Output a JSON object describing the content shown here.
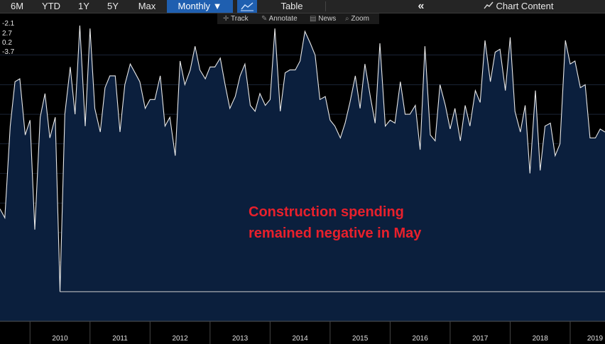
{
  "toolbar": {
    "ranges": [
      "6M",
      "YTD",
      "1Y",
      "5Y",
      "Max"
    ],
    "frequency": "Monthly ▼",
    "table_label": "Table",
    "chart_content_label": "Chart Content"
  },
  "subbar": {
    "track": "Track",
    "annotate": "Annotate",
    "news": "News",
    "zoom": "Zoom"
  },
  "y_labels": [
    "-2.1",
    "2.7",
    "0.2",
    "-3.7"
  ],
  "annotation": "Construction spending\nremained negative in May",
  "colors": {
    "line": "#e8e8e8",
    "fill": "#0b1f3d",
    "annotation": "#e8202c",
    "active_button": "#1f5fb0"
  },
  "chart_data": {
    "type": "area",
    "title": "",
    "xlabel": "",
    "ylabel": "",
    "x_ticks": [
      "2010",
      "2011",
      "2012",
      "2013",
      "2014",
      "2015",
      "2016",
      "2017",
      "2018",
      "2019"
    ],
    "x_range": [
      2009.5,
      2019.58
    ],
    "ylim": [
      -6,
      4
    ],
    "grid": true,
    "series": [
      {
        "values": [
          [
            2009.5,
            -2.2
          ],
          [
            2009.58,
            -2.5
          ],
          [
            2009.67,
            0.6
          ],
          [
            2009.75,
            2.1
          ],
          [
            2009.83,
            2.2
          ],
          [
            2009.92,
            0.3
          ],
          [
            2010.0,
            0.8
          ],
          [
            2010.08,
            -2.9
          ],
          [
            2010.17,
            0.9
          ],
          [
            2010.25,
            1.7
          ],
          [
            2010.33,
            0.2
          ],
          [
            2010.42,
            0.9
          ],
          [
            2010.5,
            -5.0
          ],
          [
            2010.58,
            1.0
          ],
          [
            2010.67,
            2.6
          ],
          [
            2010.75,
            1.0
          ],
          [
            2010.83,
            4.0
          ],
          [
            2010.92,
            0.6
          ],
          [
            2011.0,
            3.9
          ],
          [
            2011.08,
            1.2
          ],
          [
            2011.17,
            0.4
          ],
          [
            2011.25,
            1.9
          ],
          [
            2011.33,
            2.3
          ],
          [
            2011.42,
            2.3
          ],
          [
            2011.5,
            0.4
          ],
          [
            2011.58,
            2.0
          ],
          [
            2011.67,
            2.7
          ],
          [
            2011.75,
            2.4
          ],
          [
            2011.83,
            2.1
          ],
          [
            2011.92,
            1.2
          ],
          [
            2012.0,
            1.5
          ],
          [
            2012.08,
            1.5
          ],
          [
            2012.17,
            2.3
          ],
          [
            2012.25,
            0.6
          ],
          [
            2012.33,
            0.9
          ],
          [
            2012.42,
            -0.4
          ],
          [
            2012.5,
            2.8
          ],
          [
            2012.58,
            2.0
          ],
          [
            2012.67,
            2.5
          ],
          [
            2012.75,
            3.3
          ],
          [
            2012.83,
            2.5
          ],
          [
            2012.92,
            2.2
          ],
          [
            2013.0,
            2.6
          ],
          [
            2013.08,
            2.6
          ],
          [
            2013.17,
            2.9
          ],
          [
            2013.25,
            2.0
          ],
          [
            2013.33,
            1.2
          ],
          [
            2013.42,
            1.6
          ],
          [
            2013.5,
            2.3
          ],
          [
            2013.58,
            2.7
          ],
          [
            2013.67,
            1.3
          ],
          [
            2013.75,
            1.1
          ],
          [
            2013.83,
            1.7
          ],
          [
            2013.92,
            1.3
          ],
          [
            2014.0,
            1.5
          ],
          [
            2014.08,
            3.9
          ],
          [
            2014.17,
            1.1
          ],
          [
            2014.25,
            2.4
          ],
          [
            2014.33,
            2.5
          ],
          [
            2014.42,
            2.5
          ],
          [
            2014.5,
            2.8
          ],
          [
            2014.58,
            3.8
          ],
          [
            2014.67,
            3.4
          ],
          [
            2014.75,
            3.0
          ],
          [
            2014.83,
            1.5
          ],
          [
            2014.92,
            1.6
          ],
          [
            2015.0,
            0.8
          ],
          [
            2015.08,
            0.6
          ],
          [
            2015.17,
            0.2
          ],
          [
            2015.25,
            0.7
          ],
          [
            2015.33,
            1.4
          ],
          [
            2015.42,
            2.3
          ],
          [
            2015.5,
            1.2
          ],
          [
            2015.58,
            2.7
          ],
          [
            2015.67,
            1.6
          ],
          [
            2015.75,
            0.7
          ],
          [
            2015.83,
            3.4
          ],
          [
            2015.92,
            0.6
          ],
          [
            2016.0,
            0.8
          ],
          [
            2016.08,
            0.7
          ],
          [
            2016.17,
            2.1
          ],
          [
            2016.25,
            1.0
          ],
          [
            2016.33,
            1.0
          ],
          [
            2016.42,
            1.3
          ],
          [
            2016.5,
            -0.2
          ],
          [
            2016.58,
            3.3
          ],
          [
            2016.67,
            0.3
          ],
          [
            2016.75,
            0.1
          ],
          [
            2016.83,
            2.0
          ],
          [
            2016.92,
            1.3
          ],
          [
            2017.0,
            0.5
          ],
          [
            2017.08,
            1.2
          ],
          [
            2017.17,
            0.1
          ],
          [
            2017.25,
            1.3
          ],
          [
            2017.33,
            0.6
          ],
          [
            2017.42,
            1.8
          ],
          [
            2017.5,
            1.4
          ],
          [
            2017.58,
            3.5
          ],
          [
            2017.67,
            2.1
          ],
          [
            2017.75,
            3.1
          ],
          [
            2017.83,
            3.2
          ],
          [
            2017.92,
            1.8
          ],
          [
            2018.0,
            3.6
          ],
          [
            2018.08,
            1.1
          ],
          [
            2018.17,
            0.4
          ],
          [
            2018.25,
            1.3
          ],
          [
            2018.33,
            -1.0
          ],
          [
            2018.42,
            1.8
          ],
          [
            2018.5,
            -0.9
          ],
          [
            2018.58,
            0.6
          ],
          [
            2018.67,
            0.7
          ],
          [
            2018.75,
            -0.4
          ],
          [
            2018.83,
            0.0
          ],
          [
            2018.92,
            3.5
          ],
          [
            2019.0,
            2.7
          ],
          [
            2019.08,
            2.8
          ],
          [
            2019.17,
            1.9
          ],
          [
            2019.25,
            2.0
          ],
          [
            2019.33,
            0.2
          ],
          [
            2019.42,
            0.2
          ],
          [
            2019.5,
            0.5
          ],
          [
            2019.58,
            0.4
          ]
        ]
      }
    ]
  }
}
